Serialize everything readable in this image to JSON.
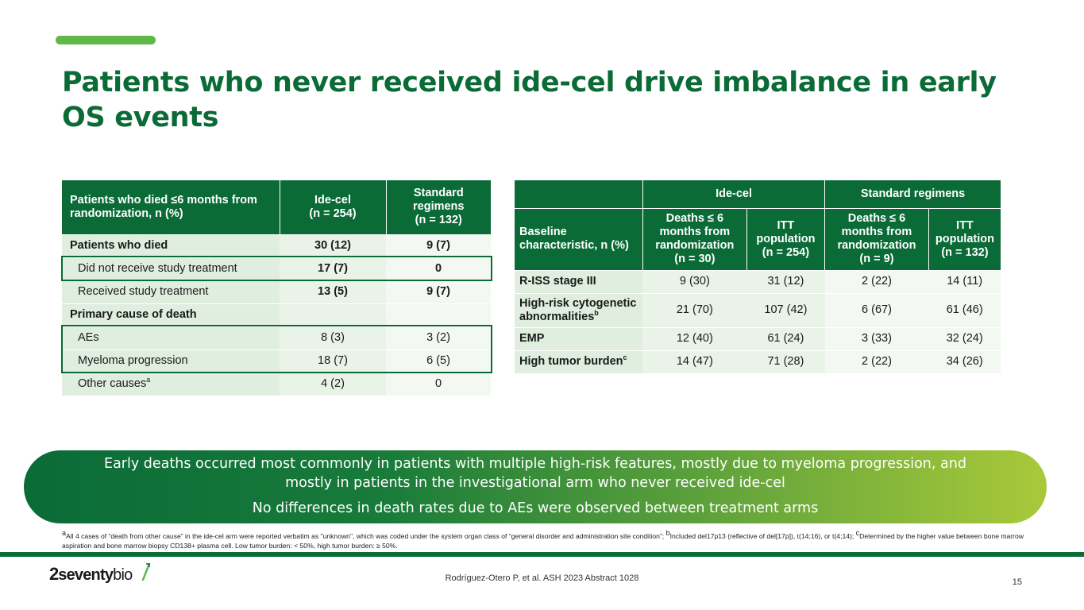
{
  "title": "Patients who never received ide-cel drive imbalance in early OS events",
  "left_table": {
    "header": {
      "col1": "Patients who died ≤6 months from randomization, n (%)",
      "col2_line1": "Ide-cel",
      "col2_line2": "(n = 254)",
      "col3_line1": "Standard regimens",
      "col3_line2": "(n = 132)"
    },
    "rows": [
      {
        "label": "Patients who died",
        "idecel": "30 (12)",
        "standard": "9 (7)"
      },
      {
        "label": "Did not receive study treatment",
        "idecel": "17 (7)",
        "standard": "0"
      },
      {
        "label": "Received study treatment",
        "idecel": "13 (5)",
        "standard": "9 (7)"
      },
      {
        "label": "Primary cause of death",
        "idecel": "",
        "standard": ""
      },
      {
        "label": "AEs",
        "idecel": "8 (3)",
        "standard": "3 (2)"
      },
      {
        "label": "Myeloma progression",
        "idecel": "18 (7)",
        "standard": "6 (5)"
      },
      {
        "label": "Other causes",
        "label_sup": "a",
        "idecel": "4 (2)",
        "standard": "0"
      }
    ]
  },
  "right_table": {
    "group_ide": "Ide-cel",
    "group_std": "Standard regimens",
    "baseline_label": "Baseline characteristic, n (%)",
    "ide_deaths": "Deaths ≤ 6 months from randomization (n = 30)",
    "ide_itt": "ITT population (n = 254)",
    "std_deaths": "Deaths ≤ 6 months from randomization (n = 9)",
    "std_itt": "ITT population (n = 132)",
    "rows": [
      {
        "label": "R-ISS stage III",
        "label_sup": "",
        "v1": "9 (30)",
        "v2": "31 (12)",
        "v3": "2 (22)",
        "v4": "14 (11)"
      },
      {
        "label": "High-risk cytogenetic abnormalities",
        "label_sup": "b",
        "v1": "21 (70)",
        "v2": "107 (42)",
        "v3": "6 (67)",
        "v4": "61 (46)"
      },
      {
        "label": "EMP",
        "label_sup": "",
        "v1": "12 (40)",
        "v2": "61 (24)",
        "v3": "3 (33)",
        "v4": "32 (24)"
      },
      {
        "label": "High tumor burden",
        "label_sup": "c",
        "v1": "14 (47)",
        "v2": "71 (28)",
        "v3": "2 (22)",
        "v4": "34 (26)"
      }
    ]
  },
  "banner": {
    "line1": "Early deaths occurred most commonly in patients with multiple high-risk features, mostly due to myeloma progression, and mostly in patients in the investigational arm who never received ide-cel",
    "line2": "No differences in death rates due to AEs were observed between treatment arms"
  },
  "footnote": {
    "sup_a": "a",
    "text_a": "All 4 cases of “death from other cause” in the ide-cel arm were reported verbatim as \"unknown\", which was coded under the system organ class of “general disorder and administration site condition”; ",
    "sup_b": "b",
    "text_b": "Included del17p13 (reflective of del[17p]), t(14;16), or t(4;14); ",
    "sup_c": "c",
    "text_c": "Determined by the higher value between bone marrow aspiration and bone marrow biopsy CD138+ plasma cell. Low tumor burden: < 50%, high tumor burden: ≥ 50%."
  },
  "logo": {
    "two": "2",
    "seventy": "seventy",
    "bio": "bio"
  },
  "citation": "Rodríguez-Otero P, et al. ASH 2023 Abstract 1028",
  "page_number": "15",
  "colors": {
    "brand_green": "#0a6b37",
    "accent_green": "#5fb84a",
    "lime": "#a9c93a"
  }
}
